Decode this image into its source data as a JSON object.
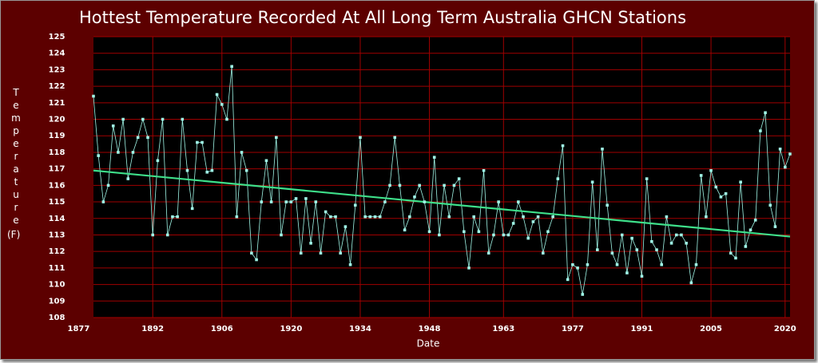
{
  "chart_data": {
    "type": "line",
    "title": "Hottest Temperature Recorded At All Long Term Australia GHCN Stations",
    "x_label": "Date",
    "y_label": "Temperature",
    "y_unit": "(F)",
    "x": [
      1880,
      1881,
      1882,
      1883,
      1884,
      1885,
      1886,
      1887,
      1888,
      1889,
      1890,
      1891,
      1892,
      1893,
      1894,
      1895,
      1896,
      1897,
      1898,
      1899,
      1900,
      1901,
      1902,
      1903,
      1904,
      1905,
      1906,
      1907,
      1908,
      1909,
      1910,
      1911,
      1912,
      1913,
      1914,
      1915,
      1916,
      1917,
      1918,
      1919,
      1920,
      1921,
      1922,
      1923,
      1924,
      1925,
      1926,
      1927,
      1928,
      1929,
      1930,
      1931,
      1932,
      1933,
      1934,
      1935,
      1936,
      1937,
      1938,
      1939,
      1940,
      1941,
      1942,
      1943,
      1944,
      1945,
      1946,
      1947,
      1948,
      1949,
      1950,
      1951,
      1952,
      1953,
      1954,
      1955,
      1956,
      1957,
      1958,
      1959,
      1960,
      1961,
      1962,
      1963,
      1964,
      1965,
      1966,
      1967,
      1968,
      1969,
      1970,
      1971,
      1972,
      1973,
      1974,
      1975,
      1976,
      1977,
      1978,
      1979,
      1980,
      1981,
      1982,
      1983,
      1984,
      1985,
      1986,
      1987,
      1988,
      1989,
      1990,
      1991,
      1992,
      1993,
      1994,
      1995,
      1996,
      1997,
      1998,
      1999,
      2000,
      2001,
      2002,
      2003,
      2004,
      2005,
      2006,
      2007,
      2008,
      2009,
      2010,
      2011,
      2012,
      2013,
      2014,
      2015,
      2016,
      2017,
      2018,
      2019,
      2020,
      2021
    ],
    "values": [
      121.4,
      117.8,
      115,
      116,
      119.6,
      118,
      120,
      116.4,
      118,
      118.9,
      120,
      118.9,
      113,
      117.5,
      120,
      113,
      114.1,
      114.1,
      120,
      116.9,
      114.6,
      118.6,
      118.6,
      116.8,
      116.9,
      121.5,
      120.9,
      120,
      123.2,
      114.1,
      118,
      116.9,
      111.9,
      111.5,
      115,
      117.5,
      115,
      118.9,
      113,
      115,
      115,
      115.2,
      111.9,
      115.2,
      112.5,
      115,
      111.9,
      114.4,
      114.1,
      114.1,
      111.9,
      113.5,
      111.2,
      114.8,
      118.9,
      114.1,
      114.1,
      114.1,
      114.1,
      115,
      116,
      118.9,
      116,
      113.3,
      114.1,
      115.3,
      116,
      115,
      113.2,
      117.7,
      113,
      116,
      114.1,
      116,
      116.4,
      113.2,
      111,
      114.1,
      113.2,
      116.9,
      111.9,
      113,
      115,
      113,
      113,
      113.7,
      115,
      114.1,
      112.8,
      113.8,
      114.1,
      111.9,
      113.2,
      114.1,
      116.4,
      118.4,
      110.3,
      111.2,
      111,
      109.4,
      111.2,
      116.2,
      112.1,
      118.2,
      114.8,
      111.9,
      111.2,
      113,
      110.7,
      112.8,
      112.1,
      110.5,
      116.4,
      112.6,
      112.1,
      111.2,
      114.1,
      112.5,
      113,
      113,
      112.5,
      110.1,
      111.2,
      116.6,
      114.1,
      116.9,
      115.9,
      115.3,
      115.5,
      111.9,
      111.6,
      116.2,
      112.3,
      113.3,
      113.9,
      119.3,
      120.4,
      114.8,
      113.5,
      118.2,
      117.1,
      117.9
    ],
    "color": "#9ff5e6",
    "trend": {
      "x": [
        1880,
        2021
      ],
      "values": [
        116.9,
        112.9
      ],
      "color": "#3ee08a"
    },
    "xlim": [
      1880,
      2021
    ],
    "xticks": [
      1877,
      1892,
      1906,
      1920,
      1934,
      1948,
      1963,
      1977,
      1991,
      2005,
      2020
    ],
    "ylim": [
      108,
      125
    ],
    "yticks": [
      108,
      109,
      110,
      111,
      112,
      113,
      114,
      115,
      116,
      117,
      118,
      119,
      120,
      121,
      122,
      123,
      124,
      125
    ],
    "grid": true,
    "grid_color": "#a00000"
  }
}
